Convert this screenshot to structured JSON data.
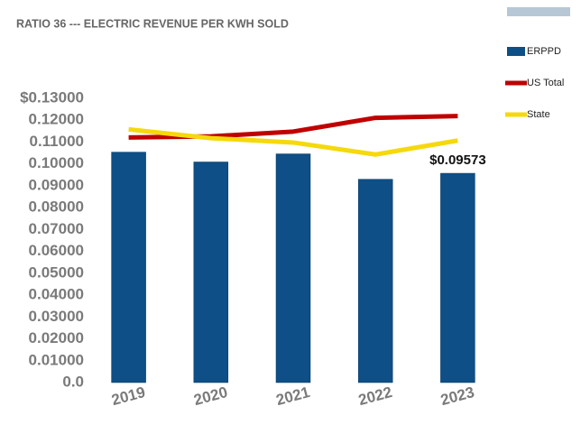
{
  "chart_data": {
    "type": "bar",
    "title": "RATIO 36 --- ELECTRIC REVENUE PER KWH SOLD",
    "categories": [
      "2019",
      "2020",
      "2021",
      "2022",
      "2023"
    ],
    "series": [
      {
        "name": "ERPPD",
        "color": "#0d4f86",
        "type": "bar",
        "values": [
          0.1054,
          0.1009,
          0.1046,
          0.093,
          0.09573
        ],
        "value_labels": [
          null,
          null,
          null,
          null,
          "$0.09573"
        ]
      },
      {
        "name": "US Total",
        "color": "#c00000",
        "type": "line",
        "values": [
          0.1121,
          0.1126,
          0.1148,
          0.1211,
          0.1219
        ]
      },
      {
        "name": "State",
        "color": "#f5d90a",
        "type": "line",
        "values": [
          0.1158,
          0.1118,
          0.1098,
          0.1043,
          0.1107
        ]
      }
    ],
    "ylim": [
      0,
      0.13
    ],
    "yticks": [
      {
        "value": 0,
        "label": "0.0"
      },
      {
        "value": 0.01,
        "label": "0.01000"
      },
      {
        "value": 0.02,
        "label": "0.02000"
      },
      {
        "value": 0.03,
        "label": "0.03000"
      },
      {
        "value": 0.04,
        "label": "0.04000"
      },
      {
        "value": 0.05,
        "label": "0.05000"
      },
      {
        "value": 0.06,
        "label": "0.06000"
      },
      {
        "value": 0.07,
        "label": "0.07000"
      },
      {
        "value": 0.08,
        "label": "0.08000"
      },
      {
        "value": 0.09,
        "label": "0.09000"
      },
      {
        "value": 0.1,
        "label": "0.10000"
      },
      {
        "value": 0.11,
        "label": "0.11000"
      },
      {
        "value": 0.12,
        "label": "0.12000"
      },
      {
        "value": 0.13,
        "label": "$0.13000"
      }
    ],
    "grid": false,
    "legend": "right"
  }
}
